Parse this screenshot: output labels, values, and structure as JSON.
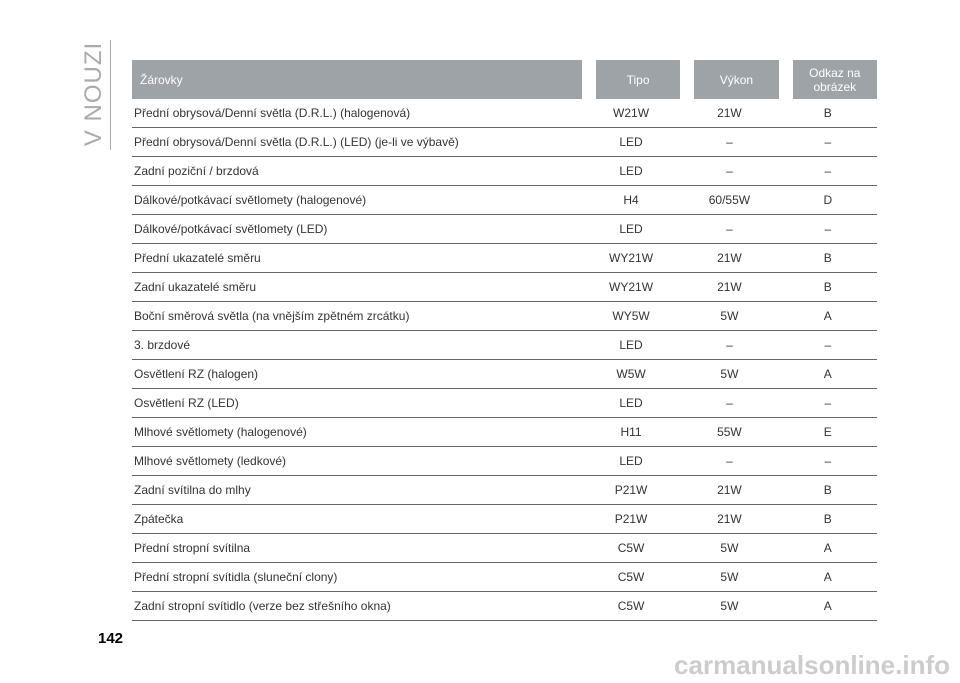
{
  "side_label": "V NOUZI",
  "table": {
    "headers": [
      "Žárovky",
      "Tipo",
      "Výkon",
      "Odkaz na obrázek"
    ],
    "rows": [
      [
        "Přední obrysová/Denní světla (D.R.L.) (halogenová)",
        "W21W",
        "21W",
        "B"
      ],
      [
        "Přední obrysová/Denní světla (D.R.L.) (LED) (je-li ve výbavě)",
        "LED",
        "–",
        "–"
      ],
      [
        "Zadní poziční / brzdová",
        "LED",
        "–",
        "–"
      ],
      [
        "Dálkové/potkávací světlomety (halogenové)",
        "H4",
        "60/55W",
        "D"
      ],
      [
        "Dálkové/potkávací světlomety (LED)",
        "LED",
        "–",
        "–"
      ],
      [
        "Přední ukazatelé směru",
        "WY21W",
        "21W",
        "B"
      ],
      [
        "Zadní ukazatelé směru",
        "WY21W",
        "21W",
        "B"
      ],
      [
        "Boční směrová světla (na vnějším zpětném zrcátku)",
        "WY5W",
        "5W",
        "A"
      ],
      [
        "3. brzdové",
        "LED",
        "–",
        "–"
      ],
      [
        "Osvětlení RZ (halogen)",
        "W5W",
        "5W",
        "A"
      ],
      [
        "Osvětlení RZ (LED)",
        "LED",
        "–",
        "–"
      ],
      [
        "Mlhové světlomety (halogenové)",
        "H11",
        "55W",
        "E"
      ],
      [
        "Mlhové světlomety (ledkové)",
        "LED",
        "–",
        "–"
      ],
      [
        "Zadní svítilna do mlhy",
        "P21W",
        "21W",
        "B"
      ],
      [
        "Zpátečka",
        "P21W",
        "21W",
        "B"
      ],
      [
        "Přední stropní svítilna",
        "C5W",
        "5W",
        "A"
      ],
      [
        "Přední stropní svítidla (sluneční clony)",
        "C5W",
        "5W",
        "A"
      ],
      [
        "Zadní stropní svítidlo (verze bez střešního okna)",
        "C5W",
        "5W",
        "A"
      ]
    ]
  },
  "page_number": "142",
  "watermark": "carmanualsonline.info"
}
